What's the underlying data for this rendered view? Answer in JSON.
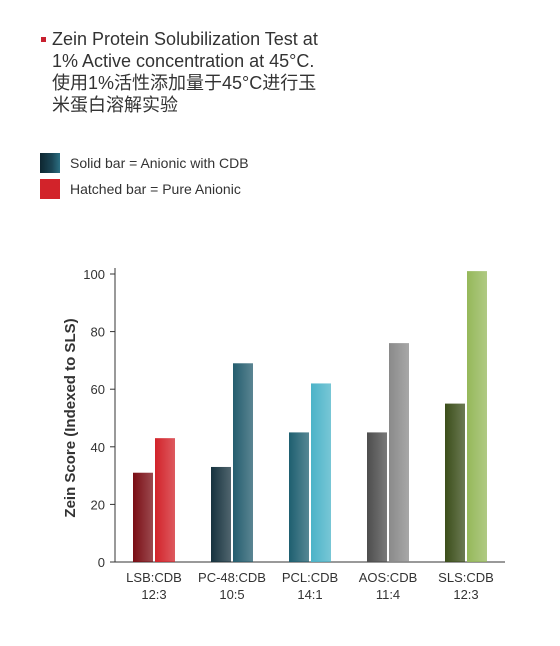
{
  "title": {
    "line1": "Zein Protein Solubilization Test at",
    "line2": "1% Active concentration at 45°C.",
    "line3": "使用1%活性添加量于45°C进行玉",
    "line4": "米蛋白溶解实验",
    "bullet_color": "#c8202f"
  },
  "legend": {
    "solid_label": "Solid bar = Anionic with CDB",
    "hatched_label": "Hatched bar = Pure Anionic",
    "solid_color": "#1b4656",
    "hatched_color": "#d2232a"
  },
  "chart_data": {
    "type": "bar",
    "categories": [
      "LSB:CDB\n12:3",
      "PC-48:CDB\n10:5",
      "PCL:CDB\n14:1",
      "AOS:CDB\n11:4",
      "SLS:CDB\n12:3"
    ],
    "series": [
      {
        "name": "Solid bar = Anionic with CDB",
        "values": [
          31,
          33,
          45,
          45,
          55
        ]
      },
      {
        "name": "Hatched bar = Pure Anionic",
        "values": [
          43,
          69,
          62,
          76,
          101
        ]
      }
    ],
    "colors": {
      "solid": [
        "#7a0d14",
        "#16323e",
        "#1e5f70",
        "#4d4d4d",
        "#3b4e1a"
      ],
      "hatched": [
        "#d2232a",
        "#245d6e",
        "#4bb3c8",
        "#8a8a8a",
        "#95b85a"
      ]
    },
    "ylabel": "Zein Score (Indexed to SLS)",
    "xlabel": "",
    "ylim": [
      0,
      100
    ],
    "yticks": [
      0,
      20,
      40,
      60,
      80,
      100
    ],
    "grid": false
  }
}
